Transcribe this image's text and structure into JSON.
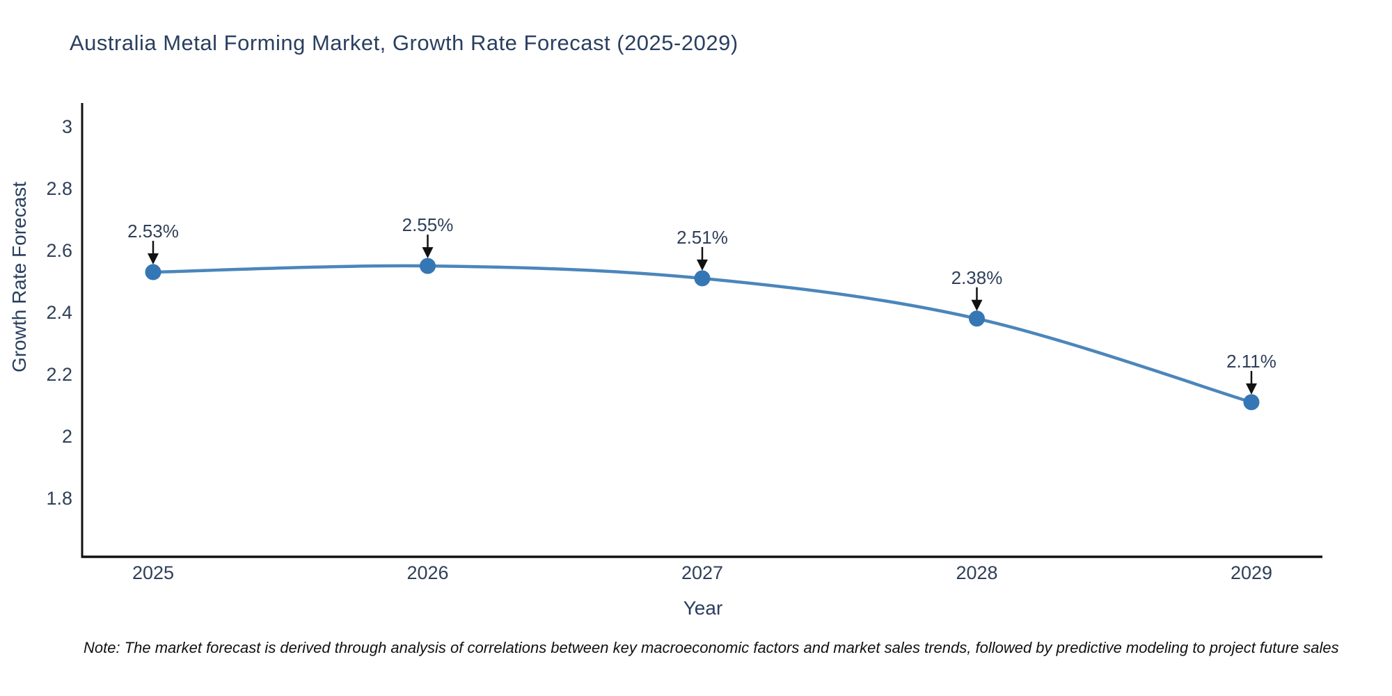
{
  "title": "Australia Metal Forming Market, Growth Rate Forecast (2025-2029)",
  "note": "Note: The market forecast is derived through analysis of correlations between key macroeconomic factors and market sales trends, followed by predictive modeling to project future sales",
  "chart_data": {
    "type": "line",
    "title": "Australia Metal Forming Market, Growth Rate Forecast (2025-2029)",
    "xlabel": "Year",
    "ylabel": "Growth Rate Forecast",
    "x": [
      "2025",
      "2026",
      "2027",
      "2028",
      "2029"
    ],
    "series": [
      {
        "name": "Growth Rate Forecast",
        "values": [
          2.53,
          2.55,
          2.51,
          2.38,
          2.11
        ]
      }
    ],
    "point_labels": [
      "2.53%",
      "2.55%",
      "2.51%",
      "2.38%",
      "2.11%"
    ],
    "yticks": [
      1.8,
      2.0,
      2.2,
      2.4,
      2.6,
      2.8,
      3.0
    ],
    "ytick_labels": [
      "1.8",
      "2",
      "2.2",
      "2.4",
      "2.6",
      "2.8",
      "3"
    ],
    "ylim": [
      1.611,
      3.076
    ],
    "line_shape": "spline",
    "grid": false,
    "legend": false,
    "colors": {
      "line": "#4b86bb",
      "marker": "#3577b4",
      "axis": "#111111",
      "tick_text": "#2f3f58",
      "annotation_text": "#2f3f58",
      "arrow": "#111111",
      "title_text": "#2a3f5f"
    }
  }
}
